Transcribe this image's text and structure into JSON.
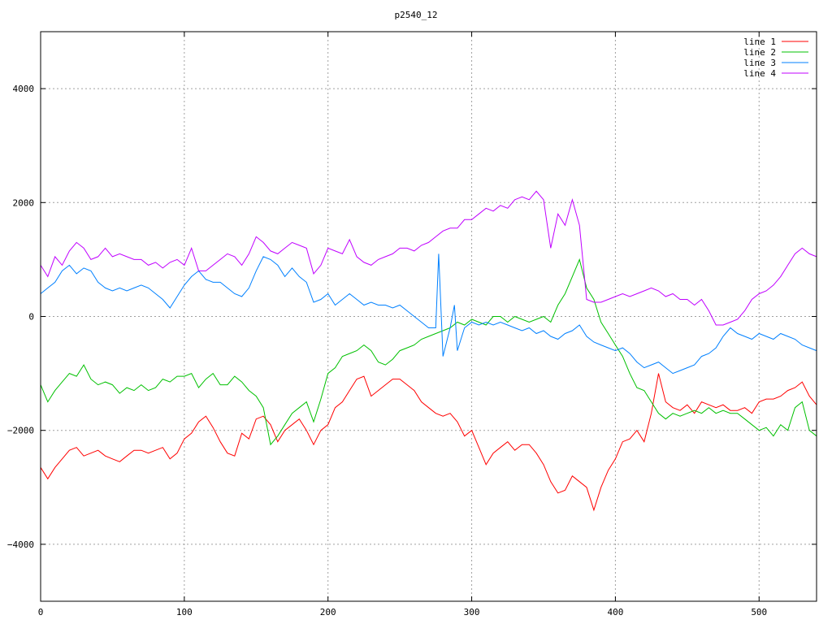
{
  "chart_data": {
    "type": "line",
    "title": "p2540_12",
    "xlabel": "",
    "ylabel": "",
    "xlim": [
      0,
      540
    ],
    "ylim": [
      -5000,
      5000
    ],
    "x_ticks": [
      0,
      100,
      200,
      300,
      400,
      500
    ],
    "y_ticks": [
      -4000,
      -2000,
      0,
      2000,
      4000
    ],
    "grid": true,
    "legend_position": "top-right",
    "series": [
      {
        "name": "line 1",
        "color": "#ff0000",
        "x": [
          0,
          5,
          10,
          15,
          20,
          25,
          30,
          35,
          40,
          45,
          50,
          55,
          60,
          65,
          70,
          75,
          80,
          85,
          90,
          95,
          100,
          105,
          110,
          115,
          120,
          125,
          130,
          135,
          140,
          145,
          150,
          155,
          160,
          165,
          170,
          175,
          180,
          185,
          190,
          195,
          200,
          205,
          210,
          215,
          220,
          225,
          230,
          235,
          240,
          245,
          250,
          255,
          260,
          265,
          270,
          275,
          280,
          285,
          290,
          295,
          300,
          305,
          310,
          315,
          320,
          325,
          330,
          335,
          340,
          345,
          350,
          355,
          360,
          365,
          370,
          375,
          380,
          385,
          390,
          395,
          400,
          405,
          410,
          415,
          420,
          425,
          430,
          435,
          440,
          445,
          450,
          455,
          460,
          465,
          470,
          475,
          480,
          485,
          490,
          495,
          500,
          505,
          510,
          515,
          520,
          525,
          530,
          535,
          540
        ],
        "y": [
          -2650,
          -2850,
          -2650,
          -2500,
          -2350,
          -2300,
          -2450,
          -2400,
          -2350,
          -2450,
          -2500,
          -2550,
          -2450,
          -2350,
          -2350,
          -2400,
          -2350,
          -2300,
          -2500,
          -2400,
          -2150,
          -2050,
          -1850,
          -1750,
          -1950,
          -2200,
          -2400,
          -2450,
          -2050,
          -2150,
          -1800,
          -1750,
          -1900,
          -2200,
          -2000,
          -1900,
          -1800,
          -2000,
          -2250,
          -2000,
          -1900,
          -1600,
          -1500,
          -1300,
          -1100,
          -1050,
          -1400,
          -1300,
          -1200,
          -1100,
          -1100,
          -1200,
          -1300,
          -1500,
          -1600,
          -1700,
          -1750,
          -1700,
          -1850,
          -2100,
          -2000,
          -2300,
          -2600,
          -2400,
          -2300,
          -2200,
          -2350,
          -2250,
          -2250,
          -2400,
          -2600,
          -2900,
          -3100,
          -3050,
          -2800,
          -2900,
          -3000,
          -3400,
          -3000,
          -2700,
          -2500,
          -2200,
          -2150,
          -2000,
          -2200,
          -1700,
          -1000,
          -1500,
          -1600,
          -1650,
          -1550,
          -1700,
          -1500,
          -1550,
          -1600,
          -1550,
          -1650,
          -1650,
          -1600,
          -1700,
          -1500,
          -1450,
          -1450,
          -1400,
          -1300,
          -1250,
          -1150,
          -1400,
          -1550
        ]
      },
      {
        "name": "line 2",
        "color": "#00c000",
        "x": [
          0,
          5,
          10,
          15,
          20,
          25,
          30,
          35,
          40,
          45,
          50,
          55,
          60,
          65,
          70,
          75,
          80,
          85,
          90,
          95,
          100,
          105,
          110,
          115,
          120,
          125,
          130,
          135,
          140,
          145,
          150,
          155,
          160,
          165,
          170,
          175,
          180,
          185,
          190,
          195,
          200,
          205,
          210,
          215,
          220,
          225,
          230,
          235,
          240,
          245,
          250,
          255,
          260,
          265,
          270,
          275,
          280,
          285,
          290,
          295,
          300,
          305,
          310,
          315,
          320,
          325,
          330,
          335,
          340,
          345,
          350,
          355,
          360,
          365,
          370,
          375,
          380,
          385,
          390,
          395,
          400,
          405,
          410,
          415,
          420,
          425,
          430,
          435,
          440,
          445,
          450,
          455,
          460,
          465,
          470,
          475,
          480,
          485,
          490,
          495,
          500,
          505,
          510,
          515,
          520,
          525,
          530,
          535,
          540
        ],
        "y": [
          -1200,
          -1500,
          -1300,
          -1150,
          -1000,
          -1050,
          -850,
          -1100,
          -1200,
          -1150,
          -1200,
          -1350,
          -1250,
          -1300,
          -1200,
          -1300,
          -1250,
          -1100,
          -1150,
          -1050,
          -1050,
          -1000,
          -1250,
          -1100,
          -1000,
          -1200,
          -1200,
          -1050,
          -1150,
          -1300,
          -1400,
          -1600,
          -2250,
          -2100,
          -1900,
          -1700,
          -1600,
          -1500,
          -1850,
          -1450,
          -1000,
          -900,
          -700,
          -650,
          -600,
          -500,
          -600,
          -800,
          -850,
          -750,
          -600,
          -550,
          -500,
          -400,
          -350,
          -300,
          -250,
          -200,
          -100,
          -150,
          -50,
          -100,
          -150,
          0,
          0,
          -100,
          0,
          -50,
          -100,
          -50,
          0,
          -100,
          200,
          400,
          700,
          1000,
          500,
          300,
          -100,
          -300,
          -500,
          -700,
          -1000,
          -1250,
          -1300,
          -1500,
          -1700,
          -1800,
          -1700,
          -1750,
          -1700,
          -1650,
          -1700,
          -1600,
          -1700,
          -1650,
          -1700,
          -1700,
          -1800,
          -1900,
          -2000,
          -1950,
          -2100,
          -1900,
          -2000,
          -1600,
          -1500,
          -2000,
          -2100
        ]
      },
      {
        "name": "line 3",
        "color": "#0080ff",
        "x": [
          0,
          5,
          10,
          15,
          20,
          25,
          30,
          35,
          40,
          45,
          50,
          55,
          60,
          65,
          70,
          75,
          80,
          85,
          90,
          95,
          100,
          105,
          110,
          115,
          120,
          125,
          130,
          135,
          140,
          145,
          150,
          155,
          160,
          165,
          170,
          175,
          180,
          185,
          190,
          195,
          200,
          205,
          210,
          215,
          220,
          225,
          230,
          235,
          240,
          245,
          250,
          255,
          260,
          265,
          270,
          275,
          277,
          280,
          285,
          288,
          290,
          295,
          300,
          305,
          310,
          315,
          320,
          325,
          330,
          335,
          340,
          345,
          350,
          355,
          360,
          365,
          370,
          375,
          380,
          385,
          390,
          395,
          400,
          405,
          410,
          415,
          420,
          425,
          430,
          435,
          440,
          445,
          450,
          455,
          460,
          465,
          470,
          475,
          480,
          485,
          490,
          495,
          500,
          505,
          510,
          515,
          520,
          525,
          530,
          535,
          540
        ],
        "y": [
          400,
          500,
          600,
          800,
          900,
          750,
          850,
          800,
          600,
          500,
          450,
          500,
          450,
          500,
          550,
          500,
          400,
          300,
          150,
          350,
          550,
          700,
          800,
          650,
          600,
          600,
          500,
          400,
          350,
          500,
          800,
          1050,
          1000,
          900,
          700,
          850,
          700,
          600,
          250,
          300,
          400,
          200,
          300,
          400,
          300,
          200,
          250,
          200,
          200,
          150,
          200,
          100,
          0,
          -100,
          -200,
          -200,
          1100,
          -700,
          -200,
          200,
          -600,
          -200,
          -100,
          -150,
          -100,
          -150,
          -100,
          -150,
          -200,
          -250,
          -200,
          -300,
          -250,
          -350,
          -400,
          -300,
          -250,
          -150,
          -350,
          -450,
          -500,
          -550,
          -600,
          -550,
          -650,
          -800,
          -900,
          -850,
          -800,
          -900,
          -1000,
          -950,
          -900,
          -850,
          -700,
          -650,
          -550,
          -350,
          -200,
          -300,
          -350,
          -400,
          -300,
          -350,
          -400,
          -300,
          -350,
          -400,
          -500,
          -550,
          -600
        ]
      },
      {
        "name": "line 4",
        "color": "#c000ff",
        "x": [
          0,
          5,
          10,
          15,
          20,
          25,
          30,
          35,
          40,
          45,
          50,
          55,
          60,
          65,
          70,
          75,
          80,
          85,
          90,
          95,
          100,
          105,
          110,
          115,
          120,
          125,
          130,
          135,
          140,
          145,
          150,
          155,
          160,
          165,
          170,
          175,
          180,
          185,
          190,
          195,
          200,
          205,
          210,
          215,
          220,
          225,
          230,
          235,
          240,
          245,
          250,
          255,
          260,
          265,
          270,
          275,
          280,
          285,
          290,
          295,
          300,
          305,
          310,
          315,
          320,
          325,
          330,
          335,
          340,
          345,
          350,
          355,
          360,
          365,
          370,
          375,
          380,
          385,
          390,
          395,
          400,
          405,
          410,
          415,
          420,
          425,
          430,
          435,
          440,
          445,
          450,
          455,
          460,
          465,
          470,
          475,
          480,
          485,
          490,
          495,
          500,
          505,
          510,
          515,
          520,
          525,
          530,
          535,
          540
        ],
        "y": [
          900,
          700,
          1050,
          900,
          1150,
          1300,
          1200,
          1000,
          1050,
          1200,
          1050,
          1100,
          1050,
          1000,
          1000,
          900,
          950,
          850,
          950,
          1000,
          900,
          1200,
          800,
          800,
          900,
          1000,
          1100,
          1050,
          900,
          1100,
          1400,
          1300,
          1150,
          1100,
          1200,
          1300,
          1250,
          1200,
          750,
          900,
          1200,
          1150,
          1100,
          1350,
          1050,
          950,
          900,
          1000,
          1050,
          1100,
          1200,
          1200,
          1150,
          1250,
          1300,
          1400,
          1500,
          1550,
          1550,
          1700,
          1700,
          1800,
          1900,
          1850,
          1950,
          1900,
          2050,
          2100,
          2050,
          2200,
          2050,
          1200,
          1800,
          1600,
          2050,
          1600,
          300,
          250,
          250,
          300,
          350,
          400,
          350,
          400,
          450,
          500,
          450,
          350,
          400,
          300,
          300,
          200,
          300,
          100,
          -150,
          -150,
          -100,
          -50,
          100,
          300,
          400,
          450,
          550,
          700,
          900,
          1100,
          1200,
          1100,
          1050
        ]
      }
    ]
  }
}
